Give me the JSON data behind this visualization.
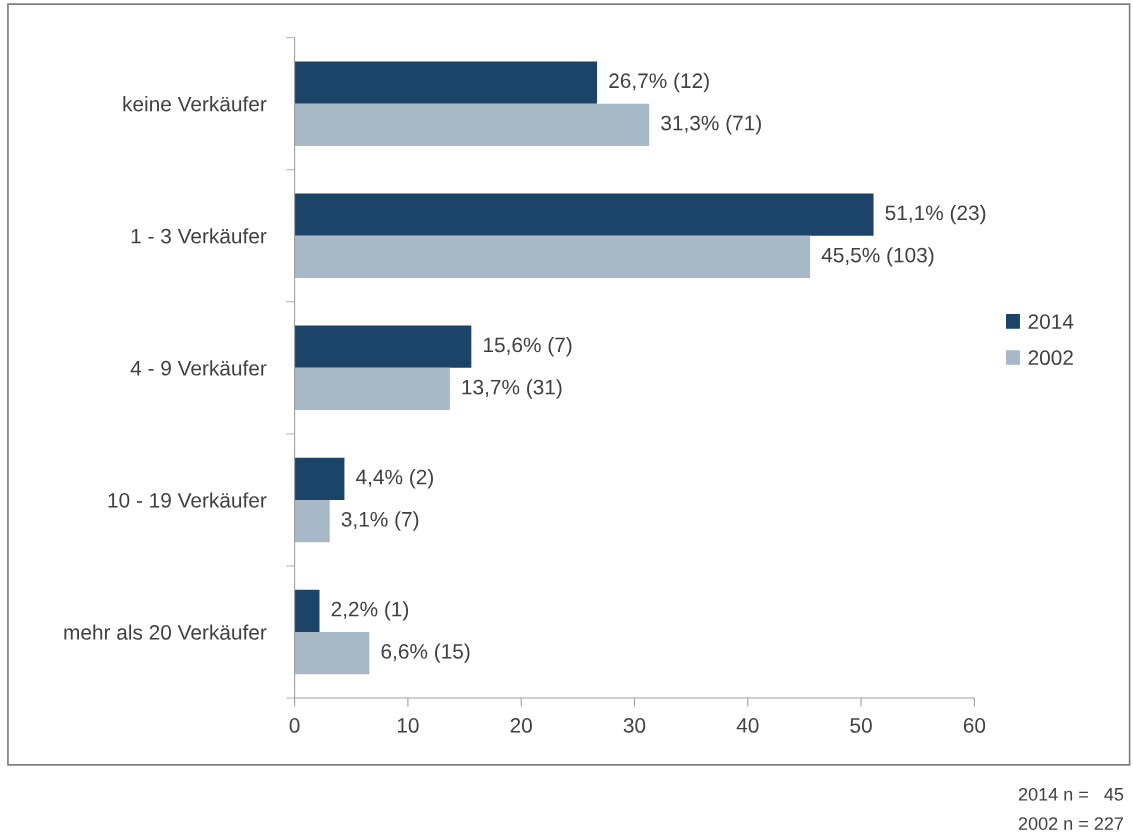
{
  "chart_data": {
    "type": "bar",
    "orientation": "horizontal",
    "categories": [
      "keine Verkäufer",
      "1 - 3 Verkäufer",
      "4 - 9 Verkäufer",
      "10 - 19 Verkäufer",
      "mehr als 20 Verkäufer"
    ],
    "series": [
      {
        "name": "2014",
        "color": "#1b4468",
        "values": [
          26.7,
          51.1,
          15.6,
          4.4,
          2.2
        ],
        "value_labels": [
          "26,7% (12)",
          "51,1% (23)",
          "15,6% (7)",
          "4,4% (2)",
          "2,2% (1)"
        ]
      },
      {
        "name": "2002",
        "color": "#a7b8c6",
        "values": [
          31.3,
          45.5,
          13.7,
          3.1,
          6.6
        ],
        "value_labels": [
          "31,3% (71)",
          "45,5% (103)",
          "13,7% (31)",
          "3,1% (7)",
          "6,6% (15)"
        ]
      }
    ],
    "xlim": [
      0,
      60
    ],
    "xticks": [
      0,
      10,
      20,
      30,
      40,
      50,
      60
    ],
    "grid": false,
    "legend": "right",
    "annotations": [
      "2014 n =   45",
      "2002 n = 227"
    ]
  }
}
